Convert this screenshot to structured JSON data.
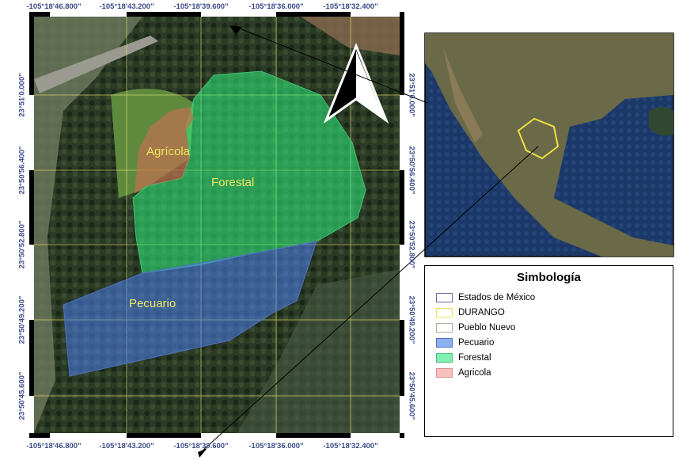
{
  "map": {
    "top_labels": [
      "-105°18'46.800\"",
      "-105°18'43.200\"",
      "-105°18'39.600\"",
      "-105°18'36.000\"",
      "-105°18'32.400\""
    ],
    "bottom_labels": [
      "-105°18'46.800\"",
      "-105°18'43.200\"",
      "-105°18'39.600\"",
      "-105°18'36.000\"",
      "-105°18'32.400\""
    ],
    "side_labels": [
      "23°51'0.000\"",
      "23°50'56.400\"",
      "23°50'52.800\"",
      "23°50'49.200\"",
      "23°50'45.600\""
    ],
    "zones": {
      "agricola": "Agrícola",
      "forestal": "Forestal",
      "pecuario": "Pecuario"
    },
    "north_arrow_icon": "north-arrow-icon"
  },
  "legend": {
    "title": "Simbología",
    "items": [
      {
        "label": "Estados de México",
        "fill": "#ffffff",
        "stroke": "#6a6aa8"
      },
      {
        "label": "DURANGO",
        "fill": "#ffffff",
        "stroke": "#f0e060"
      },
      {
        "label": "Pueblo Nuevo",
        "fill": "#ffffff",
        "stroke": "#b8a898"
      },
      {
        "label": "Pecuario",
        "fill": "#8fb0f0",
        "stroke": "#5070c0"
      },
      {
        "label": "Forestal",
        "fill": "#7ff0b0",
        "stroke": "#50c080"
      },
      {
        "label": "Agricola",
        "fill": "#f8c0c0",
        "stroke": "#e09090"
      }
    ]
  }
}
